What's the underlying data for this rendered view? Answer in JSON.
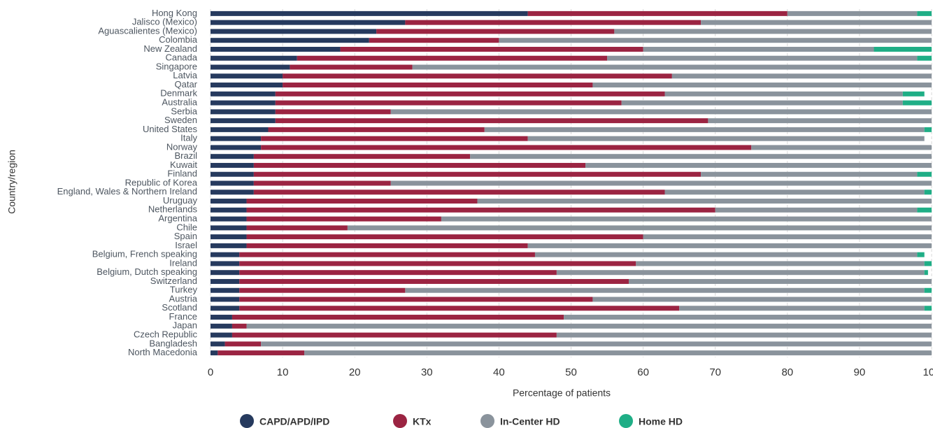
{
  "chart_data": {
    "type": "stacked-bar-horizontal",
    "x_label": "Percentage of patients",
    "y_label": "Country/region",
    "categories": [
      "Hong Kong",
      "Jalisco (Mexico)",
      "Aguascalientes (Mexico)",
      "Colombia",
      "New Zealand",
      "Canada",
      "Singapore",
      "Latvia",
      "Qatar",
      "Denmark",
      "Australia",
      "Serbia",
      "Sweden",
      "United States",
      "Italy",
      "Norway",
      "Brazil",
      "Kuwait",
      "Finland",
      "Republic of Korea",
      "England, Wales & Northern Ireland",
      "Uruguay",
      "Netherlands",
      "Argentina",
      "Chile",
      "Spain",
      "Israel",
      "Belgium, French speaking",
      "Ireland",
      "Belgium, Dutch speaking",
      "Switzerland",
      "Turkey",
      "Austria",
      "Scotland",
      "France",
      "Japan",
      "Czech Republic",
      "Bangladesh",
      "North Macedonia"
    ],
    "series": [
      {
        "name": "CAPD/APD/IPD",
        "color": "#263a5e",
        "values": [
          44,
          27,
          23,
          22,
          18,
          12,
          11,
          10,
          10,
          9,
          9,
          9,
          9,
          8,
          7,
          7,
          6,
          6,
          6,
          6,
          6,
          5,
          5,
          5,
          5,
          5,
          5,
          4,
          4,
          4,
          4,
          4,
          4,
          4,
          3,
          3,
          3,
          2,
          1
        ]
      },
      {
        "name": "KTx",
        "color": "#9b2442",
        "values": [
          36,
          41,
          33,
          18,
          42,
          43,
          17,
          54,
          43,
          54,
          48,
          16,
          60,
          30,
          37,
          68,
          30,
          46,
          62,
          19,
          57,
          32,
          65,
          27,
          14,
          55,
          39,
          41,
          55,
          44,
          54,
          23,
          49,
          61,
          46,
          2,
          45,
          5,
          12
        ]
      },
      {
        "name": "In-Center HD",
        "color": "#8a939c",
        "values": [
          18,
          32,
          44,
          60,
          32,
          43,
          72,
          36,
          47,
          33,
          39,
          75,
          31,
          61,
          55,
          25,
          64,
          48,
          30,
          75,
          36,
          63,
          28,
          68,
          81,
          40,
          56,
          53,
          40,
          51,
          42,
          72,
          47,
          34,
          51,
          95,
          52,
          93,
          87
        ]
      },
      {
        "name": "Home HD",
        "color": "#1fae86",
        "values": [
          2,
          0,
          0,
          0,
          8,
          2,
          0,
          0,
          0,
          3,
          4,
          0,
          0,
          1,
          0,
          0,
          0,
          0,
          2,
          0,
          1,
          0,
          2,
          0,
          0,
          0,
          0,
          1,
          1,
          0.5,
          0,
          1,
          0,
          1,
          0,
          0,
          0,
          0,
          0
        ]
      }
    ],
    "xlim": [
      0,
      100
    ],
    "xticks": [
      0,
      10,
      20,
      30,
      40,
      50,
      60,
      70,
      80,
      90,
      100
    ],
    "grid": true
  }
}
